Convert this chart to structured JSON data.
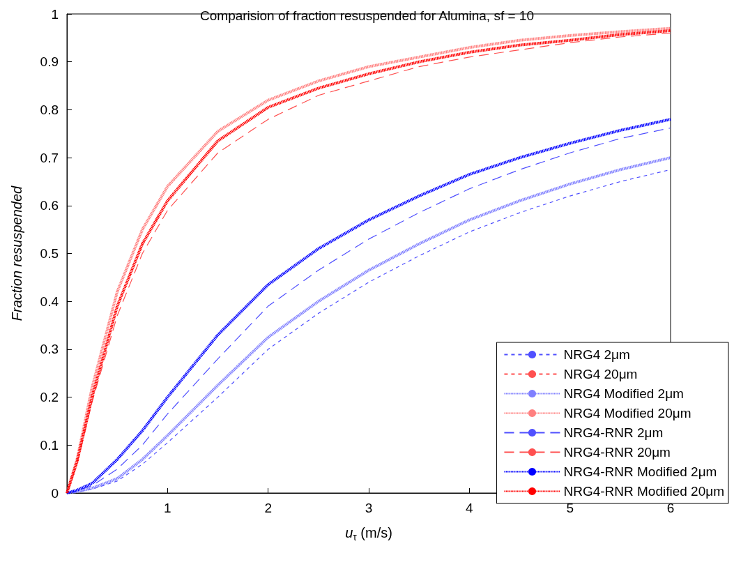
{
  "chart_data": {
    "type": "line",
    "title": "Comparision of fraction resuspended for Alumina, sf = 10",
    "xlabel": "u$_{τ}$ (m/s)",
    "ylabel": "Fraction resuspended",
    "x": [
      0,
      0.1,
      0.25,
      0.5,
      0.75,
      1,
      1.5,
      2,
      2.5,
      3,
      3.5,
      4,
      4.5,
      5,
      5.5,
      6
    ],
    "series": [
      {
        "name": "NRG4 2μm",
        "color": "#5050ff",
        "line_style": "dashed",
        "values": [
          0,
          0.002,
          0.008,
          0.025,
          0.06,
          0.105,
          0.2,
          0.3,
          0.375,
          0.44,
          0.495,
          0.545,
          0.585,
          0.62,
          0.65,
          0.675
        ]
      },
      {
        "name": "NRG4 20μm",
        "color": "#ff5050",
        "line_style": "dashed",
        "values": [
          null,
          null,
          null,
          null,
          null,
          null,
          null,
          null,
          null,
          null,
          null,
          null,
          null,
          null,
          null,
          null
        ]
      },
      {
        "name": "NRG4 Modified 2μm",
        "color": "#8080ff",
        "line_style": "dotted",
        "values": [
          0,
          0.003,
          0.01,
          0.03,
          0.07,
          0.12,
          0.225,
          0.325,
          0.4,
          0.465,
          0.52,
          0.57,
          0.61,
          0.645,
          0.675,
          0.7
        ]
      },
      {
        "name": "NRG4 Modified 20μm",
        "color": "#ff8080",
        "line_style": "dotted",
        "values": [
          0,
          0.07,
          0.22,
          0.42,
          0.55,
          0.64,
          0.755,
          0.82,
          0.86,
          0.89,
          0.91,
          0.93,
          0.945,
          0.955,
          0.963,
          0.97
        ]
      },
      {
        "name": "NRG4-RNR 2μm",
        "color": "#5050ff",
        "line_style": "long-dashed",
        "values": [
          0,
          0.005,
          0.015,
          0.05,
          0.1,
          0.165,
          0.28,
          0.39,
          0.465,
          0.53,
          0.585,
          0.635,
          0.675,
          0.71,
          0.74,
          0.762
        ]
      },
      {
        "name": "NRG4-RNR 20μm",
        "color": "#ff5050",
        "line_style": "long-dashed",
        "values": [
          0,
          0.06,
          0.19,
          0.37,
          0.5,
          0.59,
          0.71,
          0.78,
          0.83,
          0.86,
          0.89,
          0.91,
          0.925,
          0.94,
          0.952,
          0.96
        ]
      },
      {
        "name": "NRG4-RNR Modified 2μm",
        "color": "#0000ff",
        "line_style": "dotted",
        "values": [
          0,
          0.006,
          0.02,
          0.07,
          0.13,
          0.2,
          0.33,
          0.435,
          0.51,
          0.57,
          0.62,
          0.665,
          0.7,
          0.73,
          0.757,
          0.78
        ]
      },
      {
        "name": "NRG4-RNR Modified 20μm",
        "color": "#ff0000",
        "line_style": "dotted",
        "values": [
          0,
          0.065,
          0.2,
          0.39,
          0.52,
          0.61,
          0.735,
          0.805,
          0.845,
          0.875,
          0.9,
          0.92,
          0.935,
          0.945,
          0.957,
          0.965
        ]
      }
    ],
    "xlim": [
      0,
      6
    ],
    "xticks": [
      1,
      2,
      3,
      4,
      5,
      6
    ],
    "ylim": [
      0,
      1
    ],
    "yticks": [
      0,
      0.1,
      0.2,
      0.3,
      0.4,
      0.5,
      0.6,
      0.7,
      0.8,
      0.9,
      1
    ],
    "legend": "bottom right",
    "marker": "none",
    "grid": false
  }
}
